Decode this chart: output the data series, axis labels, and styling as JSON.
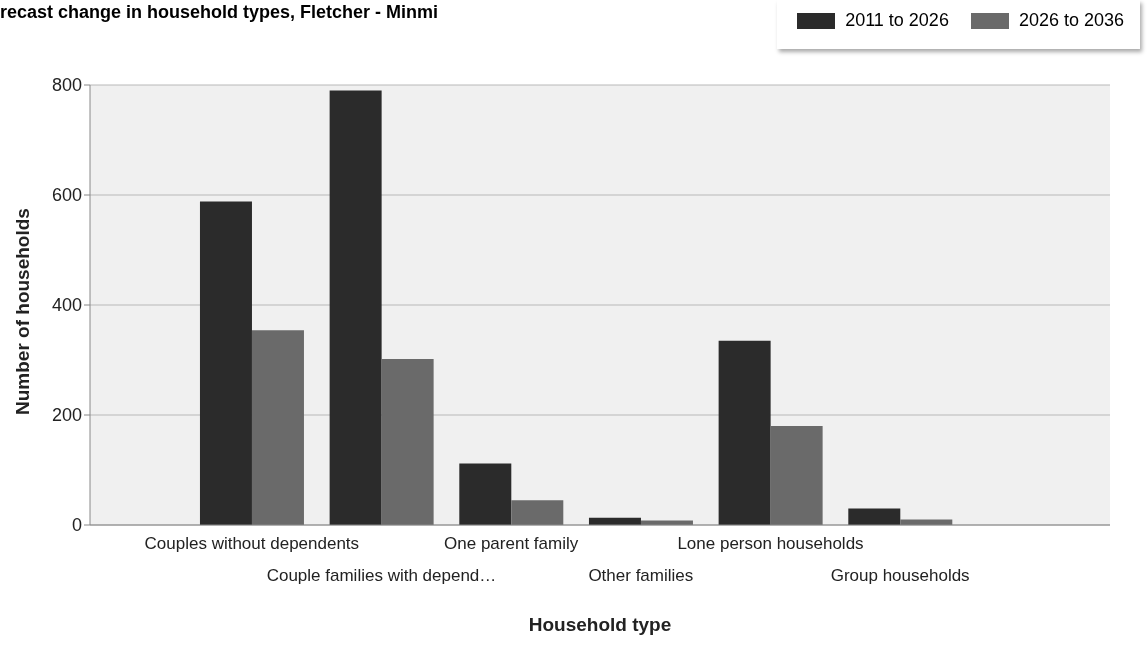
{
  "chart_data": {
    "type": "bar",
    "title": "recast change in household types, Fletcher - Minmi",
    "xlabel": "Household type",
    "ylabel": "Number of households",
    "categories": [
      "Couples without dependents",
      "Couple families with depend…",
      "One parent family",
      "Other families",
      "Lone person households",
      "Group households"
    ],
    "series": [
      {
        "name": "2011 to 2026",
        "color": "#2b2b2b",
        "values": [
          588,
          790,
          112,
          13,
          335,
          30
        ]
      },
      {
        "name": "2026 to 2036",
        "color": "#6a6a6a",
        "values": [
          354,
          302,
          45,
          8,
          180,
          10
        ]
      }
    ],
    "ylim": [
      0,
      800
    ],
    "yticks": [
      0,
      200,
      400,
      600,
      800
    ],
    "grid": "y",
    "legend": "top right"
  }
}
